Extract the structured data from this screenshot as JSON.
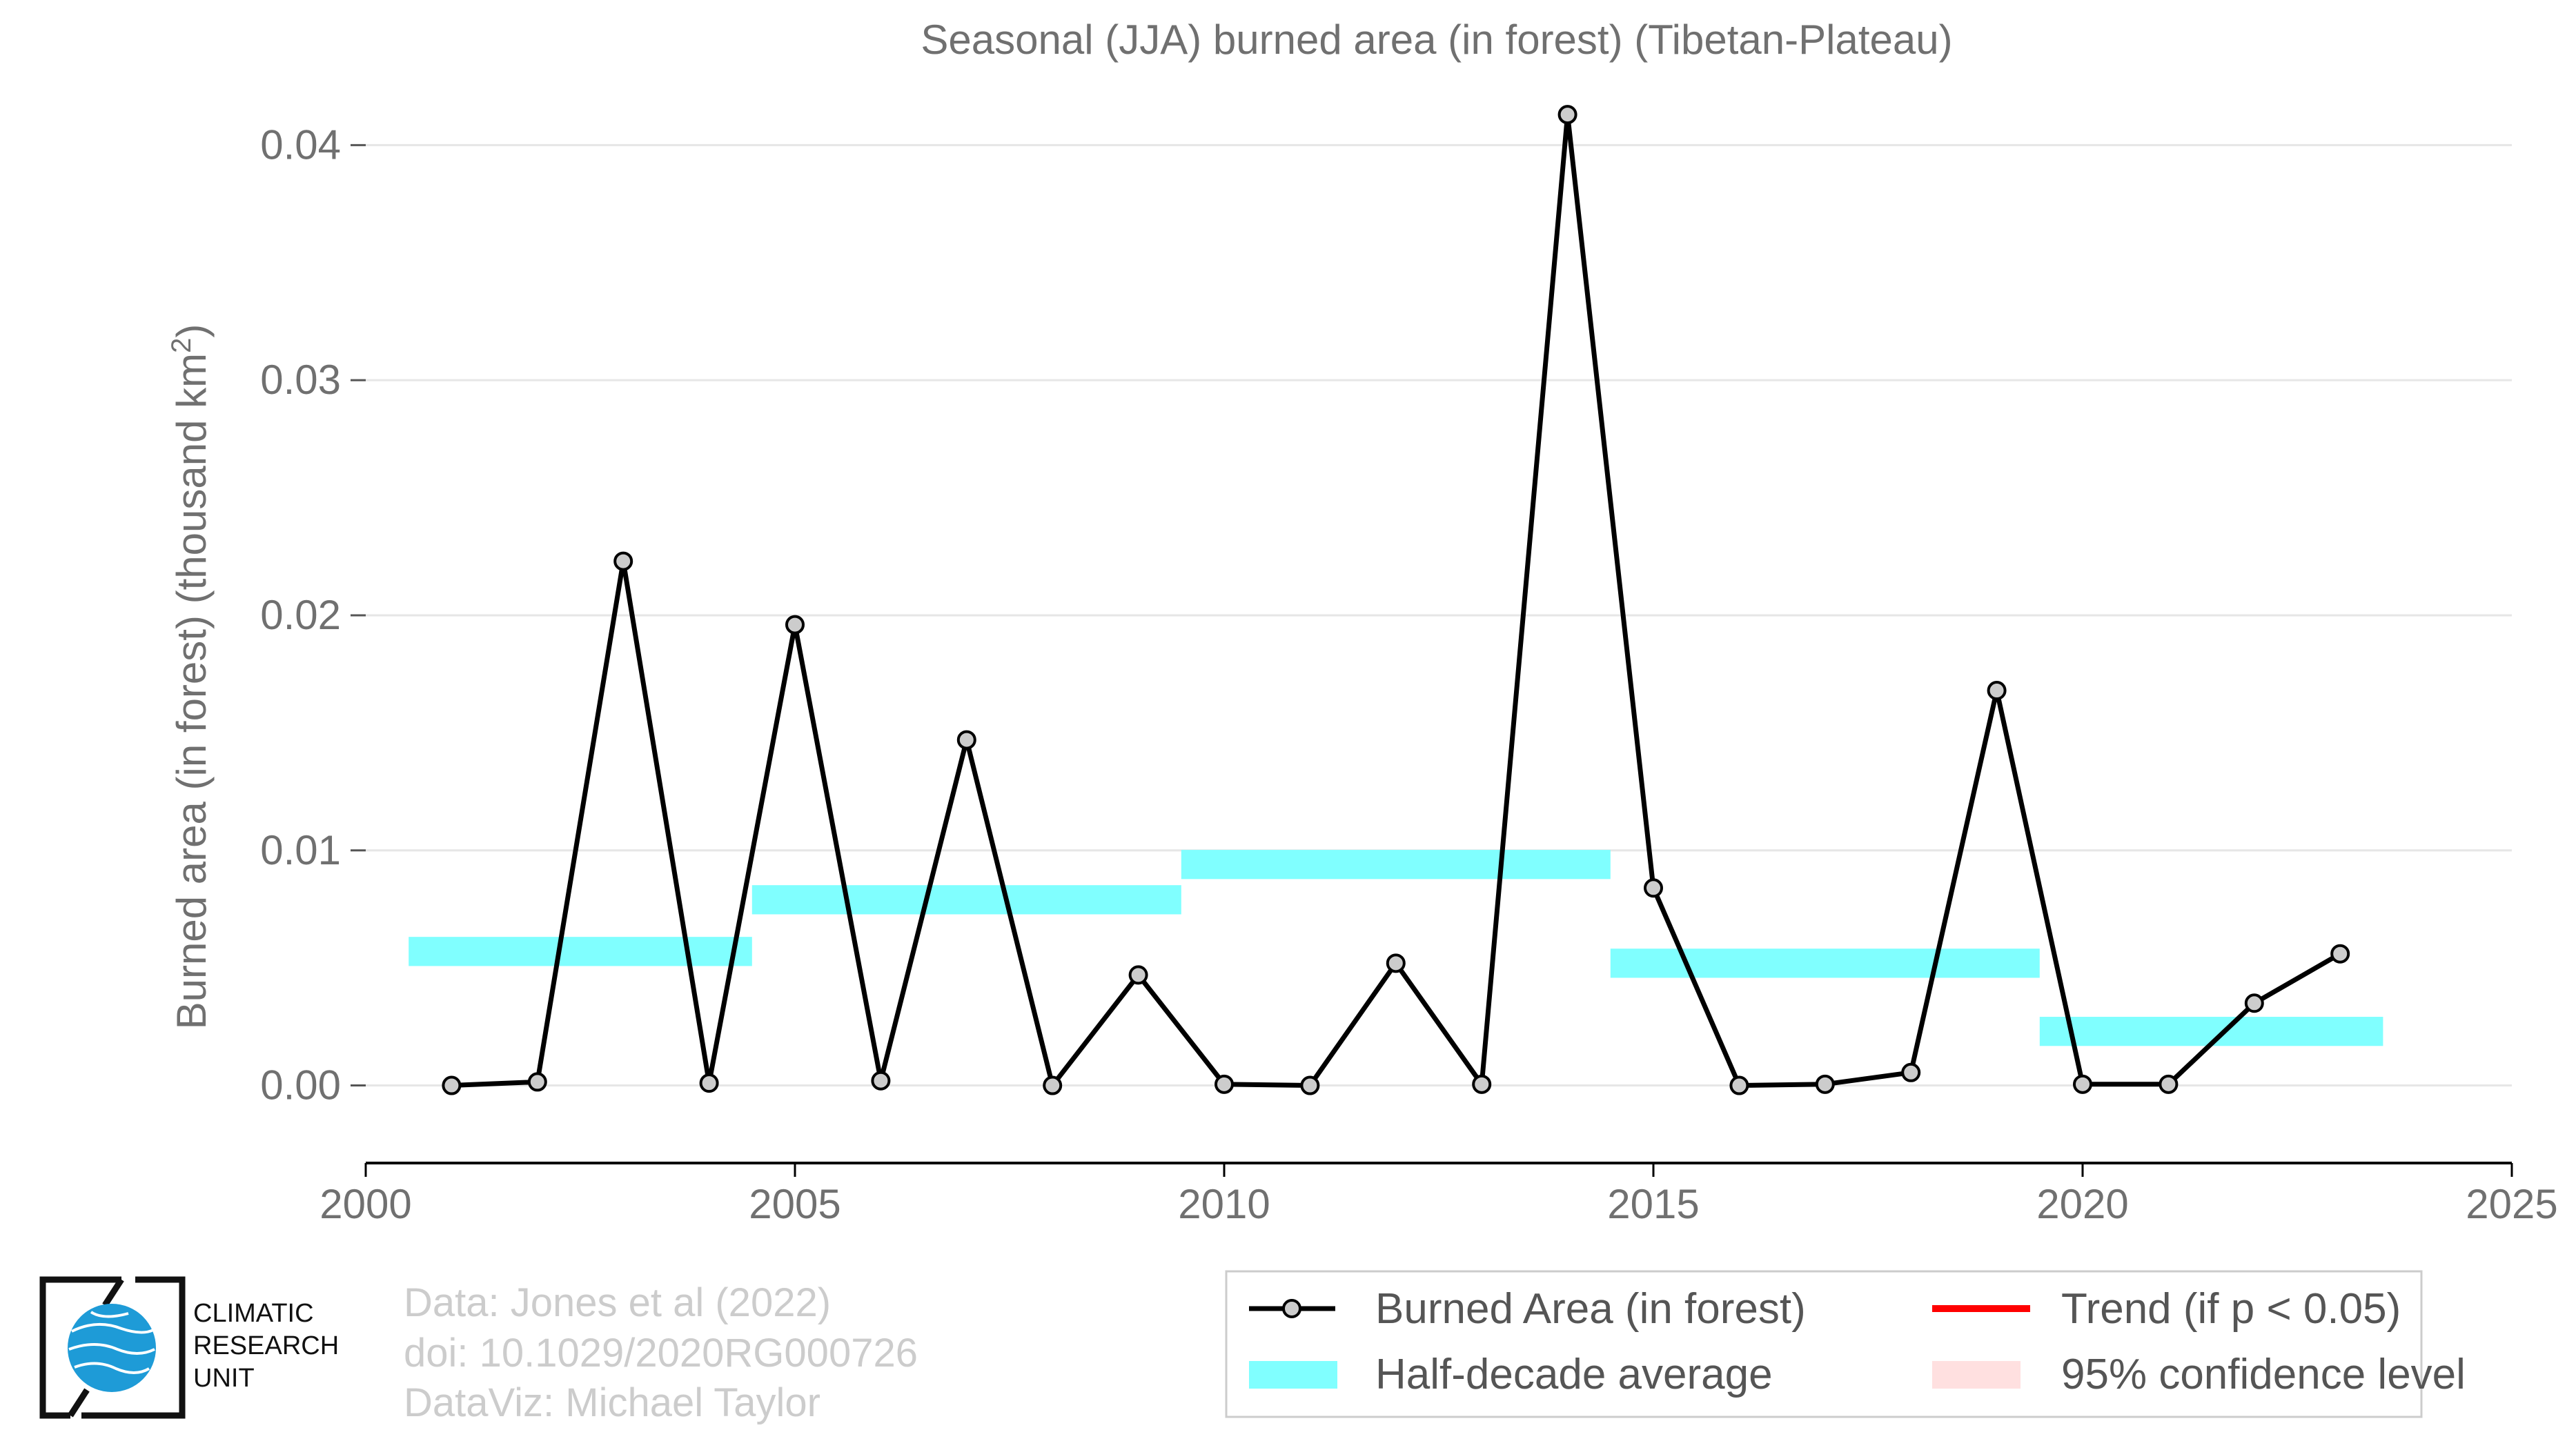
{
  "chart_data": {
    "type": "line",
    "title": "Seasonal (JJA) burned area (in forest) (Tibetan-Plateau)",
    "ylabel_main": "Burned area (in forest) (thousand km",
    "ylabel_sup": "2",
    "ylabel_tail": ")",
    "xlim": [
      2000,
      2025
    ],
    "ylim": [
      -0.0033,
      0.045
    ],
    "x_ticks": [
      "2000",
      "2005",
      "2010",
      "2015",
      "2020",
      "2025"
    ],
    "y_ticks": [
      "0.00",
      "0.01",
      "0.02",
      "0.03",
      "0.04"
    ],
    "grid": "horizontal",
    "series": [
      {
        "name": "Burned Area (in forest)",
        "x": [
          2001,
          2002,
          2003,
          2004,
          2005,
          2006,
          2007,
          2008,
          2009,
          2010,
          2011,
          2012,
          2013,
          2014,
          2015,
          2016,
          2017,
          2018,
          2019,
          2020,
          2021,
          2022,
          2023
        ],
        "values": [
          0.0,
          0.00015,
          0.0223,
          0.0001,
          0.0196,
          0.0002,
          0.0147,
          0.0,
          0.0047,
          5e-05,
          0.0,
          0.0052,
          5e-05,
          0.0413,
          0.0084,
          0.0,
          5e-05,
          0.00055,
          0.0168,
          5e-05,
          5e-05,
          0.0035,
          0.0056
        ]
      }
    ],
    "half_decade_average": [
      {
        "start": 2000.5,
        "end": 2004.5,
        "value": 0.0057
      },
      {
        "start": 2004.5,
        "end": 2009.5,
        "value": 0.0079
      },
      {
        "start": 2009.5,
        "end": 2014.5,
        "value": 0.0094
      },
      {
        "start": 2014.5,
        "end": 2019.5,
        "value": 0.0052
      },
      {
        "start": 2019.5,
        "end": 2023.5,
        "value": 0.0023
      }
    ],
    "legend": {
      "placement": "bottom-right",
      "entries": [
        {
          "label": "Burned Area (in forest)",
          "kind": "line-marker",
          "color": "#000000"
        },
        {
          "label": "Trend (if p < 0.05)",
          "kind": "line",
          "color": "#ff0000"
        },
        {
          "label": "Half-decade average",
          "kind": "bar",
          "color": "#80ffff"
        },
        {
          "label": "95% confidence level",
          "kind": "bar",
          "color": "#ffe0e0"
        }
      ]
    },
    "colors": {
      "line": "#000000",
      "marker_fill": "#cccccc",
      "half_decade": "#80ffff",
      "grid": "#e6e6e6",
      "axis": "#000000",
      "text": "#707070"
    }
  },
  "credits": {
    "line1": "Data: Jones et al (2022)",
    "line2": "doi: 10.1029/2020RG000726",
    "line3": "DataViz: Michael Taylor"
  },
  "logo": {
    "line1": "CLIMATIC",
    "line2": "RESEARCH",
    "line3": "UNIT",
    "icon": "globe-icon",
    "color": "#1e9bd7"
  }
}
